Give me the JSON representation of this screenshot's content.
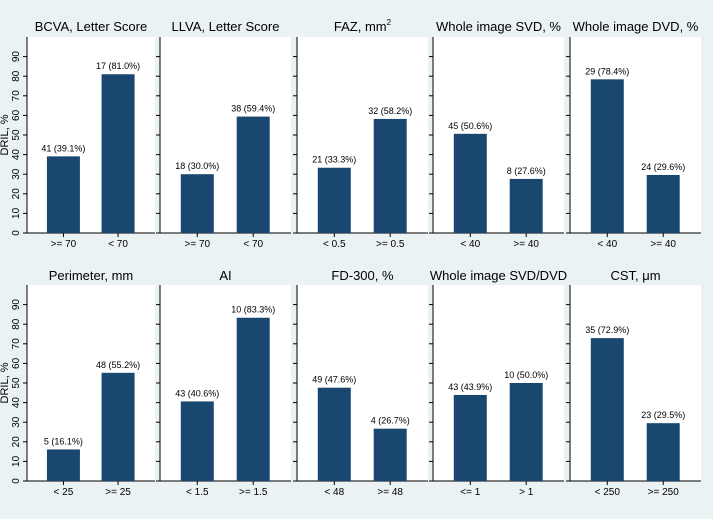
{
  "colors": {
    "background": "#eaf2f3",
    "panel": "#ffffff",
    "bar": "#1a476f",
    "text": "#000000",
    "axis": "#000000",
    "grid": "#eaf2f3"
  },
  "chart_data": {
    "layout": "2 rows x 5 panels",
    "shared_ylabel": "DRIL, %",
    "ylim": [
      0,
      100
    ],
    "yticks": [
      0,
      10,
      20,
      30,
      40,
      50,
      60,
      70,
      80,
      90
    ],
    "grid": false,
    "panels": [
      {
        "type": "bar",
        "title": "BCVA, Letter Score",
        "title_sup": "",
        "categories": [
          ">= 70",
          "< 70"
        ],
        "values": [
          39.1,
          81.0
        ],
        "labels": [
          "41 (39.1%)",
          "17 (81.0%)"
        ]
      },
      {
        "type": "bar",
        "title": "LLVA, Letter Score",
        "title_sup": "",
        "categories": [
          ">= 70",
          "< 70"
        ],
        "values": [
          30.0,
          59.4
        ],
        "labels": [
          "18 (30.0%)",
          "38 (59.4%)"
        ]
      },
      {
        "type": "bar",
        "title": "FAZ, mm",
        "title_sup": "2",
        "categories": [
          "< 0.5",
          ">= 0.5"
        ],
        "values": [
          33.3,
          58.2
        ],
        "labels": [
          "21 (33.3%)",
          "32 (58.2%)"
        ]
      },
      {
        "type": "bar",
        "title": "Whole image SVD, %",
        "title_sup": "",
        "categories": [
          "< 40",
          ">= 40"
        ],
        "values": [
          50.6,
          27.6
        ],
        "labels": [
          "45 (50.6%)",
          "8 (27.6%)"
        ]
      },
      {
        "type": "bar",
        "title": "Whole image DVD, %",
        "title_sup": "",
        "categories": [
          "< 40",
          ">= 40"
        ],
        "values": [
          78.4,
          29.6
        ],
        "labels": [
          "29 (78.4%)",
          "24 (29.6%)"
        ]
      },
      {
        "type": "bar",
        "title": "Perimeter, mm",
        "title_sup": "",
        "categories": [
          "< 25",
          ">= 25"
        ],
        "values": [
          16.1,
          55.2
        ],
        "labels": [
          "5 (16.1%)",
          "48 (55.2%)"
        ]
      },
      {
        "type": "bar",
        "title": "AI",
        "title_sup": "",
        "categories": [
          "< 1.5",
          ">= 1.5"
        ],
        "values": [
          40.6,
          83.3
        ],
        "labels": [
          "43 (40.6%)",
          "10 (83.3%)"
        ]
      },
      {
        "type": "bar",
        "title": "FD-300, %",
        "title_sup": "",
        "categories": [
          "< 48",
          ">= 48"
        ],
        "values": [
          47.6,
          26.7
        ],
        "labels": [
          "49 (47.6%)",
          "4 (26.7%)"
        ]
      },
      {
        "type": "bar",
        "title": "Whole image SVD/DVD",
        "title_sup": "",
        "categories": [
          "<= 1",
          "> 1"
        ],
        "values": [
          43.9,
          50.0
        ],
        "labels": [
          "43 (43.9%)",
          "10 (50.0%)"
        ]
      },
      {
        "type": "bar",
        "title": "CST, μm",
        "title_sup": "",
        "categories": [
          "< 250",
          ">= 250"
        ],
        "values": [
          72.9,
          29.5
        ],
        "labels": [
          "35 (72.9%)",
          "23 (29.5%)"
        ]
      }
    ]
  }
}
